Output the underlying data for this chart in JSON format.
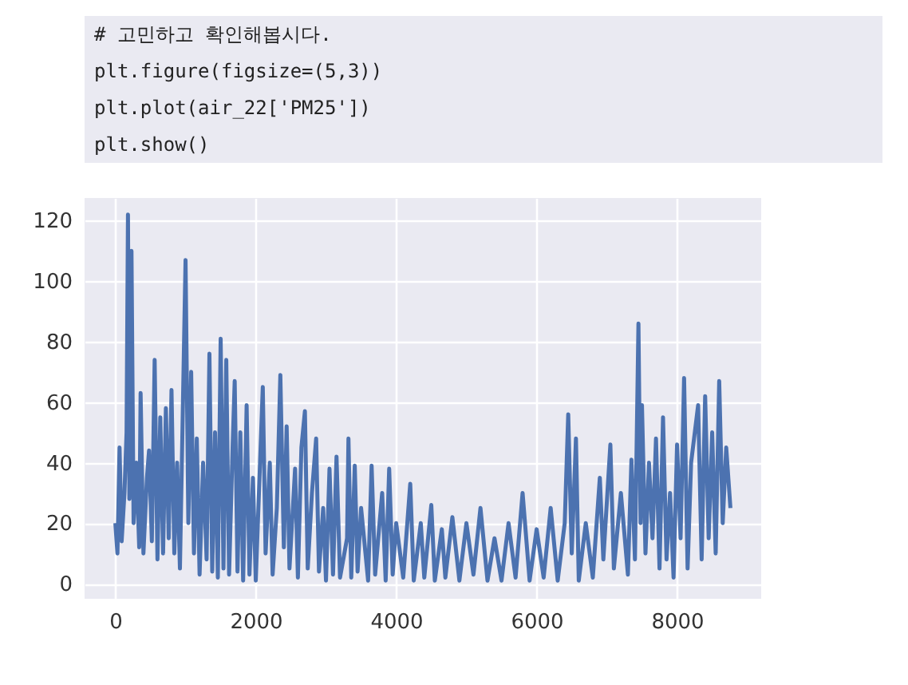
{
  "chart_data": {
    "type": "line",
    "annotations": [
      "# 고민하고 확인해봅시다.",
      "plt.figure(figsize=(5,3))",
      "plt.plot(air_22['PM25'])",
      "plt.show()"
    ],
    "x": [
      0,
      30,
      60,
      90,
      130,
      160,
      180,
      200,
      230,
      260,
      300,
      340,
      360,
      400,
      450,
      480,
      520,
      560,
      600,
      640,
      680,
      720,
      760,
      800,
      840,
      880,
      920,
      1000,
      1040,
      1080,
      1120,
      1160,
      1200,
      1250,
      1300,
      1340,
      1380,
      1420,
      1460,
      1500,
      1540,
      1580,
      1620,
      1670,
      1700,
      1740,
      1780,
      1820,
      1870,
      1910,
      1960,
      2000,
      2100,
      2140,
      2200,
      2240,
      2300,
      2350,
      2400,
      2440,
      2480,
      2560,
      2600,
      2650,
      2700,
      2740,
      2800,
      2860,
      2900,
      2960,
      3000,
      3050,
      3100,
      3150,
      3200,
      3300,
      3320,
      3360,
      3410,
      3450,
      3500,
      3600,
      3650,
      3700,
      3800,
      3850,
      3900,
      3950,
      4000,
      4100,
      4200,
      4250,
      4350,
      4400,
      4500,
      4550,
      4650,
      4700,
      4800,
      4900,
      5000,
      5100,
      5200,
      5300,
      5400,
      5500,
      5600,
      5700,
      5800,
      5900,
      6000,
      6100,
      6200,
      6300,
      6400,
      6450,
      6500,
      6560,
      6600,
      6700,
      6800,
      6900,
      6950,
      7050,
      7100,
      7200,
      7300,
      7350,
      7400,
      7450,
      7480,
      7500,
      7550,
      7600,
      7650,
      7700,
      7750,
      7800,
      7850,
      7900,
      7950,
      8000,
      8050,
      8100,
      8150,
      8200,
      8300,
      8350,
      8400,
      8450,
      8500,
      8550,
      8600,
      8650,
      8700,
      8760
    ],
    "series": [
      {
        "color": "#4c72b0",
        "values": [
          20,
          10,
          45,
          14,
          30,
          50,
          122,
          28,
          110,
          20,
          40,
          12,
          63,
          10,
          35,
          44,
          14,
          74,
          8,
          55,
          10,
          58,
          15,
          64,
          10,
          40,
          5,
          107,
          20,
          70,
          10,
          48,
          3,
          40,
          8,
          76,
          4,
          50,
          2,
          81,
          5,
          74,
          3,
          45,
          67,
          4,
          50,
          1,
          59,
          3,
          35,
          1,
          65,
          10,
          40,
          3,
          25,
          69,
          12,
          52,
          5,
          38,
          2,
          45,
          57,
          5,
          30,
          48,
          4,
          25,
          1,
          38,
          3,
          42,
          2,
          15,
          48,
          2,
          39,
          4,
          25,
          1,
          39,
          3,
          30,
          1,
          38,
          3,
          20,
          2,
          33,
          1,
          20,
          2,
          26,
          1,
          18,
          2,
          22,
          1,
          20,
          3,
          25,
          1,
          15,
          1,
          20,
          2,
          30,
          1,
          18,
          2,
          25,
          1,
          20,
          56,
          10,
          48,
          1,
          20,
          2,
          35,
          8,
          46,
          5,
          30,
          3,
          41,
          8,
          86,
          20,
          59,
          10,
          40,
          15,
          48,
          5,
          55,
          8,
          30,
          2,
          46,
          15,
          68,
          5,
          40,
          59,
          8,
          62,
          15,
          50,
          10,
          67,
          20,
          45,
          25
        ]
      }
    ],
    "xlim": [
      -438,
      9198
    ],
    "xticks": [
      0,
      2000,
      4000,
      6000,
      8000
    ],
    "ylim": [
      -5,
      127.5
    ],
    "yticks": [
      0,
      20,
      40,
      60,
      80,
      100,
      120
    ],
    "grid": true,
    "legend": false,
    "marker": "none",
    "line_style": "solid"
  }
}
